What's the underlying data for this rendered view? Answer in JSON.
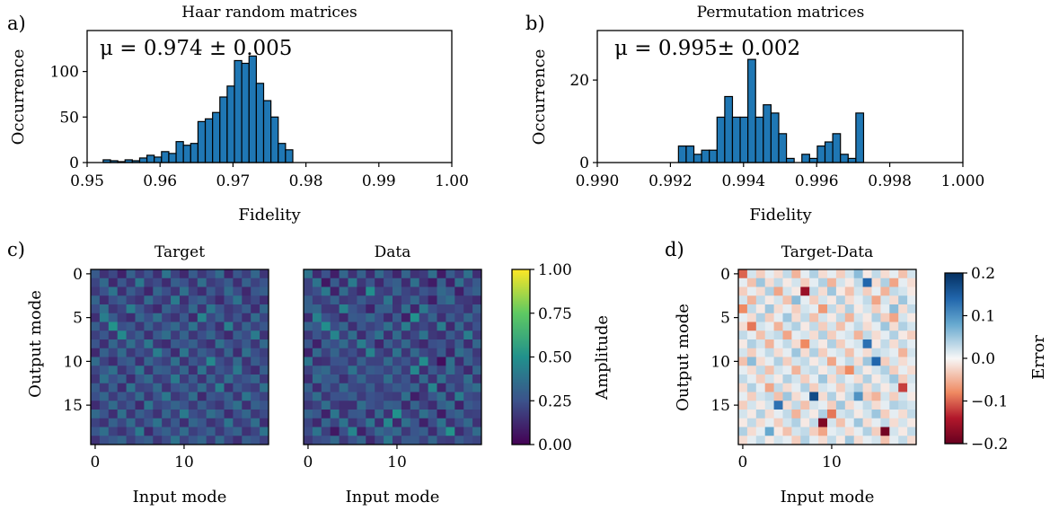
{
  "panels": {
    "a": "a)",
    "b": "b)",
    "c": "c)",
    "d": "d)"
  },
  "chart_data": [
    {
      "id": "a",
      "type": "bar",
      "title": "Haar random matrices",
      "annotation": "μ = 0.974 ± 0.005",
      "xlabel": "Fidelity",
      "ylabel": "Occurrence",
      "xlim": [
        0.95,
        1.0
      ],
      "ylim": [
        0,
        145
      ],
      "xticks": [
        0.95,
        0.96,
        0.97,
        0.98,
        0.99,
        1.0
      ],
      "xtick_labels": [
        "0.95",
        "0.96",
        "0.97",
        "0.98",
        "0.99",
        "1.00"
      ],
      "yticks": [
        0,
        50,
        100
      ],
      "ytick_labels": [
        "0",
        "50",
        "100"
      ],
      "bar_color": "#1f77b4",
      "bin_start": 0.9522,
      "bin_width": 0.001,
      "values": [
        3,
        2,
        1,
        3,
        2,
        5,
        8,
        6,
        12,
        10,
        23,
        19,
        21,
        45,
        48,
        55,
        72,
        84,
        112,
        109,
        117,
        87,
        68,
        50,
        21,
        14
      ]
    },
    {
      "id": "b",
      "type": "bar",
      "title": "Permutation matrices",
      "annotation": "μ = 0.995± 0.002",
      "xlabel": "Fidelity",
      "ylabel": "Occurrence",
      "xlim": [
        0.99,
        1.0
      ],
      "ylim": [
        0,
        32
      ],
      "xticks": [
        0.99,
        0.992,
        0.994,
        0.996,
        0.998,
        1.0
      ],
      "xtick_labels": [
        "0.990",
        "0.992",
        "0.994",
        "0.996",
        "0.998",
        "1.000"
      ],
      "yticks": [
        0,
        20
      ],
      "ytick_labels": [
        "0",
        "20"
      ],
      "bar_color": "#1f77b4",
      "bin_start": 0.99222,
      "bin_width": 0.000211,
      "values": [
        4,
        4,
        2,
        3,
        3,
        11,
        16,
        11,
        11,
        25,
        11,
        14,
        12,
        7,
        1,
        0,
        2,
        1,
        4,
        5,
        7,
        2,
        1,
        12
      ]
    },
    {
      "id": "c1",
      "type": "heatmap",
      "title": "Target",
      "xlabel": "Input mode",
      "ylabel": "Output mode",
      "size": 20,
      "xticks": [
        0,
        10
      ],
      "yticks": [
        0,
        5,
        10,
        15
      ],
      "colormap": "viridis",
      "vmin": 0,
      "vmax": 1,
      "rows": [
        [
          0.28,
          0.15,
          0.22,
          0.1,
          0.31,
          0.18,
          0.26,
          0.14,
          0.38,
          0.2,
          0.12,
          0.29,
          0.17,
          0.24,
          0.35,
          0.11,
          0.27,
          0.19,
          0.33,
          0.16
        ],
        [
          0.21,
          0.34,
          0.12,
          0.27,
          0.16,
          0.4,
          0.19,
          0.23,
          0.13,
          0.3,
          0.25,
          0.15,
          0.36,
          0.18,
          0.22,
          0.29,
          0.14,
          0.31,
          0.2,
          0.26
        ],
        [
          0.17,
          0.25,
          0.38,
          0.14,
          0.29,
          0.21,
          0.11,
          0.33,
          0.24,
          0.16,
          0.37,
          0.2,
          0.13,
          0.28,
          0.19,
          0.35,
          0.23,
          0.12,
          0.27,
          0.3
        ],
        [
          0.32,
          0.13,
          0.24,
          0.3,
          0.19,
          0.15,
          0.35,
          0.22,
          0.17,
          0.41,
          0.14,
          0.26,
          0.31,
          0.2,
          0.12,
          0.24,
          0.38,
          0.16,
          0.22,
          0.14
        ],
        [
          0.23,
          0.36,
          0.16,
          0.21,
          0.42,
          0.27,
          0.18,
          0.12,
          0.31,
          0.23,
          0.19,
          0.34,
          0.15,
          0.39,
          0.26,
          0.17,
          0.21,
          0.29,
          0.13,
          0.33
        ],
        [
          0.14,
          0.42,
          0.29,
          0.18,
          0.13,
          0.33,
          0.24,
          0.37,
          0.2,
          0.15,
          0.28,
          0.12,
          0.45,
          0.22,
          0.31,
          0.18,
          0.26,
          0.14,
          0.35,
          0.21
        ],
        [
          0.3,
          0.18,
          0.51,
          0.24,
          0.28,
          0.16,
          0.31,
          0.19,
          0.27,
          0.34,
          0.21,
          0.38,
          0.18,
          0.25,
          0.14,
          0.43,
          0.17,
          0.32,
          0.2,
          0.27
        ],
        [
          0.19,
          0.27,
          0.15,
          0.47,
          0.22,
          0.3,
          0.14,
          0.28,
          0.36,
          0.18,
          0.32,
          0.16,
          0.24,
          0.33,
          0.2,
          0.12,
          0.3,
          0.23,
          0.41,
          0.15
        ],
        [
          0.26,
          0.14,
          0.33,
          0.19,
          0.36,
          0.22,
          0.4,
          0.17,
          0.13,
          0.29,
          0.24,
          0.31,
          0.19,
          0.14,
          0.37,
          0.25,
          0.2,
          0.28,
          0.16,
          0.34
        ],
        [
          0.12,
          0.31,
          0.21,
          0.35,
          0.17,
          0.25,
          0.2,
          0.42,
          0.26,
          0.13,
          0.39,
          0.18,
          0.3,
          0.23,
          0.16,
          0.32,
          0.13,
          0.37,
          0.24,
          0.19
        ],
        [
          0.35,
          0.2,
          0.13,
          0.26,
          0.3,
          0.14,
          0.33,
          0.23,
          0.19,
          0.37,
          0.15,
          0.27,
          0.21,
          0.46,
          0.24,
          0.18,
          0.34,
          0.15,
          0.29,
          0.22
        ],
        [
          0.21,
          0.28,
          0.37,
          0.16,
          0.24,
          0.39,
          0.15,
          0.31,
          0.29,
          0.2,
          0.33,
          0.14,
          0.38,
          0.17,
          0.27,
          0.22,
          0.4,
          0.19,
          0.13,
          0.3
        ],
        [
          0.16,
          0.37,
          0.24,
          0.31,
          0.13,
          0.27,
          0.35,
          0.18,
          0.22,
          0.41,
          0.18,
          0.29,
          0.15,
          0.32,
          0.19,
          0.36,
          0.22,
          0.26,
          0.33,
          0.17
        ],
        [
          0.29,
          0.17,
          0.3,
          0.13,
          0.38,
          0.2,
          0.22,
          0.34,
          0.15,
          0.25,
          0.3,
          0.21,
          0.35,
          0.19,
          0.43,
          0.14,
          0.28,
          0.21,
          0.18,
          0.37
        ],
        [
          0.24,
          0.33,
          0.18,
          0.28,
          0.21,
          0.35,
          0.16,
          0.26,
          0.4,
          0.17,
          0.22,
          0.36,
          0.12,
          0.27,
          0.23,
          0.31,
          0.16,
          0.39,
          0.25,
          0.2
        ],
        [
          0.13,
          0.22,
          0.35,
          0.2,
          0.27,
          0.12,
          0.39,
          0.21,
          0.24,
          0.32,
          0.26,
          0.17,
          0.3,
          0.21,
          0.16,
          0.28,
          0.37,
          0.14,
          0.31,
          0.26
        ],
        [
          0.34,
          0.26,
          0.14,
          0.37,
          0.16,
          0.3,
          0.23,
          0.15,
          0.33,
          0.19,
          0.41,
          0.24,
          0.2,
          0.36,
          0.29,
          0.13,
          0.24,
          0.33,
          0.17,
          0.23
        ],
        [
          0.2,
          0.15,
          0.31,
          0.22,
          0.35,
          0.18,
          0.27,
          0.38,
          0.17,
          0.28,
          0.14,
          0.33,
          0.27,
          0.15,
          0.21,
          0.39,
          0.18,
          0.22,
          0.36,
          0.14
        ],
        [
          0.27,
          0.36,
          0.2,
          0.15,
          0.23,
          0.41,
          0.12,
          0.25,
          0.31,
          0.22,
          0.35,
          0.19,
          0.24,
          0.31,
          0.17,
          0.26,
          0.32,
          0.15,
          0.21,
          0.38
        ],
        [
          0.15,
          0.24,
          0.28,
          0.33,
          0.19,
          0.26,
          0.3,
          0.16,
          0.23,
          0.38,
          0.2,
          0.27,
          0.33,
          0.18,
          0.34,
          0.21,
          0.14,
          0.3,
          0.26,
          0.19
        ]
      ]
    },
    {
      "id": "c2",
      "type": "heatmap",
      "title": "Data",
      "xlabel": "Input mode",
      "size": 20,
      "xticks": [
        0,
        10
      ],
      "colormap": "viridis",
      "vmin": 0,
      "vmax": 1,
      "colorbar": {
        "label": "Amplitude",
        "ticks": [
          0.0,
          0.25,
          0.5,
          0.75,
          1.0
        ],
        "tick_labels": [
          "0.00",
          "0.25",
          "0.50",
          "0.75",
          "1.00"
        ]
      }
    },
    {
      "id": "d",
      "type": "heatmap",
      "title": "Target-Data",
      "xlabel": "Input mode",
      "ylabel": "Output mode",
      "size": 20,
      "xticks": [
        0,
        10
      ],
      "yticks": [
        0,
        5,
        10,
        15
      ],
      "colormap": "RdBu",
      "vmin": -0.2,
      "vmax": 0.2,
      "colorbar": {
        "label": "Error",
        "ticks": [
          0.2,
          0.1,
          0.0,
          -0.1,
          -0.2
        ],
        "tick_labels": [
          "0.2",
          "0.1",
          "0.0",
          "−0.1",
          "−0.2"
        ]
      },
      "rows": [
        [
          -0.1,
          0.02,
          -0.03,
          0.01,
          -0.02,
          0.03,
          -0.05,
          0.01,
          0.04,
          -0.02,
          0.01,
          -0.03,
          0.02,
          0.06,
          -0.01,
          0.03,
          -0.02,
          0.01,
          -0.04,
          0.02
        ],
        [
          0.01,
          -0.04,
          0.05,
          -0.02,
          0.03,
          -0.01,
          0.02,
          -0.03,
          0.01,
          0.04,
          -0.05,
          0.02,
          -0.01,
          0.03,
          0.14,
          -0.02,
          0.04,
          -0.06,
          0.01,
          -0.02
        ],
        [
          -0.03,
          0.01,
          -0.02,
          0.04,
          -0.06,
          0.02,
          -0.01,
          -0.16,
          0.03,
          -0.02,
          0.05,
          -0.01,
          -0.04,
          0.02,
          -0.03,
          0.01,
          -0.05,
          0.03,
          0.02,
          -0.01
        ],
        [
          0.02,
          -0.05,
          0.03,
          -0.01,
          0.02,
          -0.04,
          0.06,
          0.01,
          -0.03,
          0.02,
          -0.01,
          0.04,
          -0.02,
          0.01,
          0.03,
          -0.06,
          0.02,
          -0.02,
          0.05,
          0.01
        ],
        [
          -0.08,
          0.03,
          -0.01,
          0.05,
          -0.02,
          0.01,
          -0.03,
          0.02,
          0.01,
          -0.07,
          0.03,
          -0.02,
          0.04,
          -0.01,
          0.02,
          -0.03,
          0.01,
          0.06,
          -0.02,
          0.03
        ],
        [
          0.01,
          -0.02,
          0.04,
          -0.03,
          0.01,
          0.05,
          -0.02,
          0.03,
          -0.04,
          0.02,
          -0.01,
          0.03,
          -0.05,
          0.02,
          -0.01,
          0.04,
          -0.03,
          -0.06,
          0.02,
          -0.01
        ],
        [
          -0.02,
          -0.09,
          0.02,
          0.01,
          -0.05,
          0.02,
          0.04,
          -0.01,
          0.03,
          -0.03,
          0.02,
          -0.04,
          0.01,
          0.03,
          -0.02,
          0.01,
          0.05,
          -0.02,
          0.04,
          0.02
        ],
        [
          0.03,
          0.01,
          -0.04,
          0.02,
          0.03,
          -0.06,
          0.01,
          0.02,
          -0.02,
          0.04,
          -0.03,
          0.01,
          0.02,
          -0.05,
          0.03,
          -0.02,
          0.01,
          0.04,
          -0.01,
          -0.03
        ],
        [
          -0.01,
          0.04,
          0.02,
          -0.05,
          0.01,
          0.03,
          -0.02,
          -0.08,
          0.02,
          -0.01,
          0.04,
          -0.03,
          0.01,
          0.02,
          0.13,
          -0.01,
          0.03,
          -0.02,
          0.03,
          0.01
        ],
        [
          0.02,
          -0.03,
          0.01,
          0.03,
          -0.02,
          0.01,
          0.05,
          -0.02,
          0.04,
          -0.03,
          0.01,
          0.02,
          -0.04,
          0.01,
          -0.02,
          0.03,
          0.02,
          0.01,
          -0.05,
          0.02
        ],
        [
          -0.04,
          0.06,
          -0.02,
          0.01,
          0.04,
          -0.03,
          0.02,
          0.03,
          -0.01,
          0.02,
          -0.06,
          0.01,
          0.03,
          -0.02,
          0.05,
          0.14,
          -0.03,
          0.02,
          -0.02,
          0.01
        ],
        [
          0.01,
          -0.02,
          0.03,
          -0.04,
          0.02,
          0.01,
          -0.05,
          0.02,
          0.03,
          -0.01,
          0.02,
          -0.04,
          -0.08,
          0.03,
          -0.01,
          0.02,
          0.04,
          -0.03,
          0.01,
          -0.02
        ],
        [
          0.03,
          0.01,
          -0.03,
          0.02,
          -0.01,
          0.04,
          0.02,
          -0.03,
          0.01,
          0.05,
          -0.02,
          0.03,
          0.01,
          -0.02,
          0.04,
          -0.01,
          0.02,
          0.05,
          -0.03,
          0.02
        ],
        [
          -0.02,
          0.04,
          0.01,
          -0.06,
          0.03,
          -0.02,
          0.01,
          0.04,
          -0.03,
          0.02,
          0.01,
          -0.03,
          0.02,
          0.04,
          -0.02,
          0.03,
          -0.01,
          0.02,
          -0.12,
          0.01
        ],
        [
          0.01,
          -0.03,
          0.02,
          0.03,
          -0.04,
          0.05,
          -0.02,
          0.01,
          0.17,
          -0.02,
          0.04,
          -0.01,
          0.03,
          0.1,
          -0.03,
          -0.05,
          0.02,
          -0.03,
          0.02,
          -0.01
        ],
        [
          -0.03,
          0.02,
          -0.01,
          0.02,
          0.13,
          -0.02,
          0.03,
          -0.04,
          0.02,
          0.01,
          -0.03,
          0.05,
          -0.02,
          0.01,
          0.03,
          -0.02,
          0.01,
          0.04,
          0.03,
          0.02
        ],
        [
          0.02,
          -0.01,
          0.04,
          -0.02,
          0.01,
          0.03,
          -0.05,
          0.02,
          -0.01,
          0.04,
          -0.09,
          0.02,
          0.03,
          -0.01,
          0.02,
          0.05,
          -0.03,
          0.01,
          -0.02,
          0.03
        ],
        [
          -0.01,
          0.03,
          -0.02,
          0.01,
          -0.03,
          0.02,
          0.04,
          -0.01,
          0.03,
          -0.18,
          0.02,
          -0.04,
          0.01,
          0.05,
          -0.02,
          0.01,
          0.03,
          -0.02,
          0.02,
          -0.01
        ],
        [
          0.04,
          -0.02,
          0.01,
          0.08,
          -0.01,
          -0.04,
          0.02,
          0.03,
          -0.03,
          -0.06,
          0.01,
          0.02,
          -0.02,
          0.01,
          0.04,
          -0.03,
          -0.19,
          0.02,
          -0.01,
          0.03
        ],
        [
          -0.02,
          0.01,
          0.03,
          -0.01,
          0.02,
          0.01,
          -0.03,
          0.04,
          0.01,
          -0.02,
          0.03,
          -0.01,
          0.05,
          -0.02,
          0.01,
          0.02,
          -0.04,
          0.01,
          0.03,
          -0.02
        ]
      ]
    }
  ]
}
